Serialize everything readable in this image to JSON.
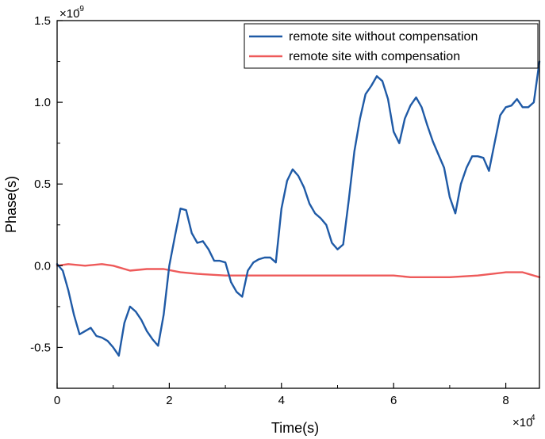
{
  "chart_data": {
    "type": "line",
    "xlabel": "Time(s)",
    "ylabel": "Phase(s)",
    "x_multiplier_label": "×10",
    "x_multiplier_exp": "4",
    "y_multiplier_label": "×10",
    "y_multiplier_exp": "-9",
    "xlim": [
      0,
      8.6
    ],
    "ylim": [
      -0.75,
      1.5
    ],
    "x_ticks": [
      0,
      2,
      4,
      6,
      8
    ],
    "x_tick_labels": [
      "0",
      "2",
      "4",
      "6",
      "8"
    ],
    "y_ticks": [
      -0.5,
      0.0,
      0.5,
      1.0,
      1.5
    ],
    "y_tick_labels": [
      "-0.5",
      "0.0",
      "0.5",
      "1.0",
      "1.5"
    ],
    "grid": false,
    "legend_position": "top-right",
    "series": [
      {
        "name": "remote site without compensation",
        "color": "#1f5aa6",
        "x": [
          0,
          0.1,
          0.2,
          0.3,
          0.4,
          0.5,
          0.6,
          0.7,
          0.8,
          0.9,
          1.0,
          1.1,
          1.2,
          1.3,
          1.4,
          1.5,
          1.6,
          1.7,
          1.8,
          1.9,
          2.0,
          2.1,
          2.2,
          2.3,
          2.4,
          2.5,
          2.6,
          2.7,
          2.8,
          2.9,
          3.0,
          3.1,
          3.2,
          3.3,
          3.4,
          3.5,
          3.6,
          3.7,
          3.8,
          3.9,
          4.0,
          4.1,
          4.2,
          4.3,
          4.4,
          4.5,
          4.6,
          4.7,
          4.8,
          4.9,
          5.0,
          5.1,
          5.2,
          5.3,
          5.4,
          5.5,
          5.6,
          5.7,
          5.8,
          5.9,
          6.0,
          6.1,
          6.2,
          6.3,
          6.4,
          6.5,
          6.6,
          6.7,
          6.8,
          6.9,
          7.0,
          7.1,
          7.2,
          7.3,
          7.4,
          7.5,
          7.6,
          7.7,
          7.8,
          7.9,
          8.0,
          8.1,
          8.2,
          8.3,
          8.4,
          8.5,
          8.6
        ],
        "values": [
          0.01,
          -0.03,
          -0.15,
          -0.3,
          -0.42,
          -0.4,
          -0.38,
          -0.43,
          -0.44,
          -0.46,
          -0.5,
          -0.55,
          -0.35,
          -0.25,
          -0.28,
          -0.33,
          -0.4,
          -0.45,
          -0.49,
          -0.3,
          0.0,
          0.18,
          0.35,
          0.34,
          0.2,
          0.14,
          0.15,
          0.1,
          0.03,
          0.03,
          0.02,
          -0.1,
          -0.16,
          -0.19,
          -0.03,
          0.02,
          0.04,
          0.05,
          0.05,
          0.02,
          0.35,
          0.52,
          0.59,
          0.55,
          0.48,
          0.38,
          0.32,
          0.29,
          0.25,
          0.14,
          0.1,
          0.13,
          0.4,
          0.7,
          0.9,
          1.05,
          1.1,
          1.16,
          1.13,
          1.02,
          0.82,
          0.75,
          0.9,
          0.98,
          1.03,
          0.97,
          0.86,
          0.76,
          0.68,
          0.6,
          0.42,
          0.32,
          0.5,
          0.6,
          0.67,
          0.67,
          0.66,
          0.58,
          0.75,
          0.92,
          0.97,
          0.98,
          1.02,
          0.97,
          0.97,
          1.0,
          1.25
        ]
      },
      {
        "name": "remote site with compensation",
        "color": "#ee5a5a",
        "x": [
          0,
          0.2,
          0.5,
          0.8,
          1.0,
          1.3,
          1.6,
          1.9,
          2.2,
          2.5,
          3.0,
          3.5,
          4.0,
          4.5,
          5.0,
          5.5,
          6.0,
          6.3,
          6.6,
          7.0,
          7.5,
          8.0,
          8.3,
          8.6
        ],
        "values": [
          0.0,
          0.01,
          0.0,
          0.01,
          0.0,
          -0.03,
          -0.02,
          -0.02,
          -0.04,
          -0.05,
          -0.06,
          -0.06,
          -0.06,
          -0.06,
          -0.06,
          -0.06,
          -0.06,
          -0.07,
          -0.07,
          -0.07,
          -0.06,
          -0.04,
          -0.04,
          -0.07
        ]
      }
    ]
  }
}
